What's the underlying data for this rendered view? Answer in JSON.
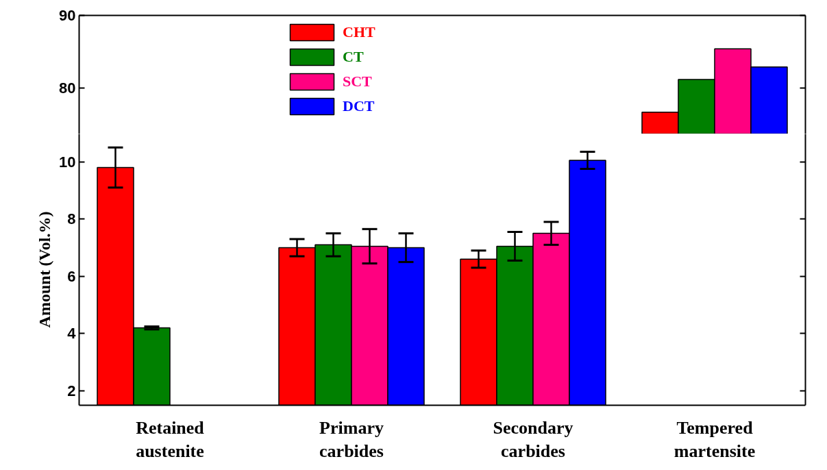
{
  "chart_data": [
    {
      "type": "bar",
      "categories": [
        null,
        null,
        null,
        null
      ],
      "ylim": [
        73.7,
        90
      ],
      "yticks": [
        80,
        90
      ],
      "tick_labels": "y",
      "legend": "top",
      "series": [
        {
          "name": "CHT",
          "color": "#ff0000",
          "values": [
            null,
            null,
            null,
            76.7
          ]
        },
        {
          "name": "CT",
          "color": "#008000",
          "values": [
            null,
            null,
            null,
            81.2
          ]
        },
        {
          "name": "SCT",
          "color": "#ff0080",
          "values": [
            null,
            null,
            null,
            85.4
          ]
        },
        {
          "name": "DCT",
          "color": "#0000ff",
          "values": [
            null,
            null,
            null,
            82.9
          ]
        }
      ]
    },
    {
      "type": "bar",
      "categories": [
        "Retained austenite",
        "Primary carbides",
        "Secondary carbides",
        "Tempered martensite"
      ],
      "ylabel": "Amount (Vol.%)",
      "ylim": [
        1.5,
        10.97
      ],
      "yticks": [
        2,
        4,
        6,
        8,
        10
      ],
      "series": [
        {
          "color": "#ff0000",
          "values": [
            9.8,
            7.0,
            6.6,
            null
          ],
          "errors": [
            0.7,
            0.3,
            0.3,
            null
          ]
        },
        {
          "color": "#008000",
          "values": [
            4.2,
            7.1,
            7.05,
            null
          ],
          "errors": [
            0.05,
            0.4,
            0.5,
            null
          ]
        },
        {
          "color": "#ff0080",
          "values": [
            null,
            7.05,
            7.5,
            null
          ],
          "errors": [
            null,
            0.6,
            0.4,
            null
          ]
        },
        {
          "color": "#0000ff",
          "values": [
            null,
            7.0,
            10.05,
            null
          ],
          "errors": [
            null,
            0.5,
            0.3,
            null
          ]
        }
      ]
    }
  ]
}
